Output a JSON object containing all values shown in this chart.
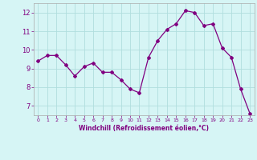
{
  "x": [
    0,
    1,
    2,
    3,
    4,
    5,
    6,
    7,
    8,
    9,
    10,
    11,
    12,
    13,
    14,
    15,
    16,
    17,
    18,
    19,
    20,
    21,
    22,
    23
  ],
  "y": [
    9.4,
    9.7,
    9.7,
    9.2,
    8.6,
    9.1,
    9.3,
    8.8,
    8.8,
    8.4,
    7.9,
    7.7,
    9.6,
    10.5,
    11.1,
    11.4,
    12.1,
    12.0,
    11.3,
    11.4,
    10.1,
    9.6,
    7.9,
    6.6
  ],
  "line_color": "#800080",
  "marker": "D",
  "marker_size": 2.0,
  "bg_color": "#d6f5f5",
  "grid_color": "#b0dede",
  "xlabel": "Windchill (Refroidissement éolien,°C)",
  "xlabel_color": "#800080",
  "tick_color": "#800080",
  "ylim": [
    6.5,
    12.5
  ],
  "xlim": [
    -0.5,
    23.5
  ],
  "yticks": [
    7,
    8,
    9,
    10,
    11,
    12
  ],
  "xticks": [
    0,
    1,
    2,
    3,
    4,
    5,
    6,
    7,
    8,
    9,
    10,
    11,
    12,
    13,
    14,
    15,
    16,
    17,
    18,
    19,
    20,
    21,
    22,
    23
  ],
  "x_ticklabels": [
    "0",
    "1",
    "2",
    "3",
    "4",
    "5",
    "6",
    "7",
    "8",
    "9",
    "10",
    "11",
    "12",
    "13",
    "14",
    "15",
    "16",
    "17",
    "18",
    "19",
    "20",
    "21",
    "22",
    "23"
  ]
}
